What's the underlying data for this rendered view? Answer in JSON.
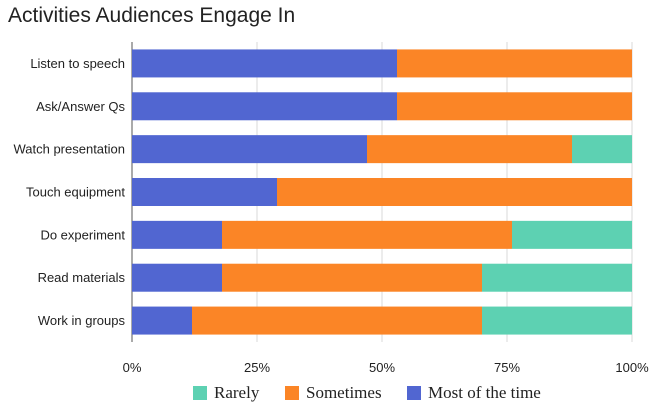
{
  "chart_data": {
    "type": "bar",
    "orientation": "horizontal",
    "stacked": true,
    "title": "Activities Audiences Engage In",
    "categories": [
      "Listen to speech",
      "Ask/Answer Qs",
      "Watch presentation",
      "Touch equipment",
      "Do experiment",
      "Read materials",
      "Work in groups"
    ],
    "series": [
      {
        "name": "Most of the time",
        "color": "#5166d1",
        "values": [
          53,
          53,
          47,
          29,
          18,
          18,
          12
        ]
      },
      {
        "name": "Sometimes",
        "color": "#fb8526",
        "values": [
          47,
          47,
          41,
          71,
          58,
          52,
          58
        ]
      },
      {
        "name": "Rarely",
        "color": "#5dd1b2",
        "values": [
          0,
          0,
          12,
          0,
          24,
          30,
          30
        ]
      }
    ],
    "xlim": [
      0,
      100
    ],
    "xticks": [
      "0%",
      "25%",
      "50%",
      "75%",
      "100%"
    ],
    "grid": true,
    "legend": {
      "position": "bottom",
      "entries": [
        {
          "label": "Rarely",
          "color": "#5dd1b2"
        },
        {
          "label": "Sometimes",
          "color": "#fb8526"
        },
        {
          "label": "Most of the time",
          "color": "#5166d1"
        }
      ]
    }
  }
}
